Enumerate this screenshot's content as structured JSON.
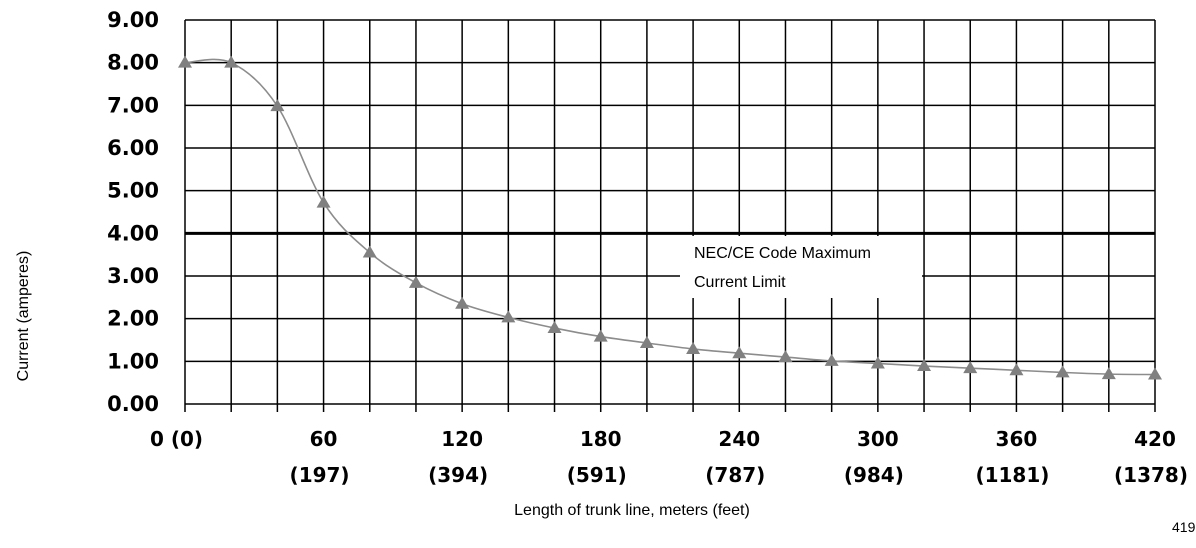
{
  "chart_data": {
    "type": "line",
    "ylabel": "Current (amperes)",
    "xlabel": "Length of trunk line, meters (feet)",
    "ylim": [
      0,
      9
    ],
    "xlim": [
      0,
      420
    ],
    "y_ticks": [
      "0.00",
      "1.00",
      "2.00",
      "3.00",
      "4.00",
      "5.00",
      "6.00",
      "7.00",
      "8.00",
      "9.00"
    ],
    "x_tick_meters": [
      "60",
      "120",
      "180",
      "240",
      "300",
      "360",
      "420"
    ],
    "x_tick_feet": [
      "(197)",
      "(394)",
      "(591)",
      "(787)",
      "(984)",
      "(1181)",
      "(1378)"
    ],
    "x_zero_label": "0  (0)",
    "grid": true,
    "colors": {
      "curve": "#8c8c8c",
      "marker": "#808080",
      "limit_line": "#000000",
      "grid": "#000000"
    },
    "series": [
      {
        "x": [
          0,
          20,
          40,
          60,
          80,
          100,
          120,
          140,
          160,
          180,
          200,
          220,
          240,
          260,
          280,
          300,
          320,
          340,
          360,
          380,
          400,
          420
        ],
        "y": [
          8.0,
          8.0,
          6.98,
          4.72,
          3.55,
          2.84,
          2.35,
          2.03,
          1.78,
          1.58,
          1.43,
          1.29,
          1.19,
          1.1,
          1.01,
          0.95,
          0.89,
          0.84,
          0.79,
          0.74,
          0.7,
          0.69
        ]
      }
    ],
    "limit_line": {
      "y": 4.0,
      "label_lines": [
        "NEC/CE Code Maximum",
        "Current Limit"
      ]
    },
    "corner_label": "419"
  }
}
